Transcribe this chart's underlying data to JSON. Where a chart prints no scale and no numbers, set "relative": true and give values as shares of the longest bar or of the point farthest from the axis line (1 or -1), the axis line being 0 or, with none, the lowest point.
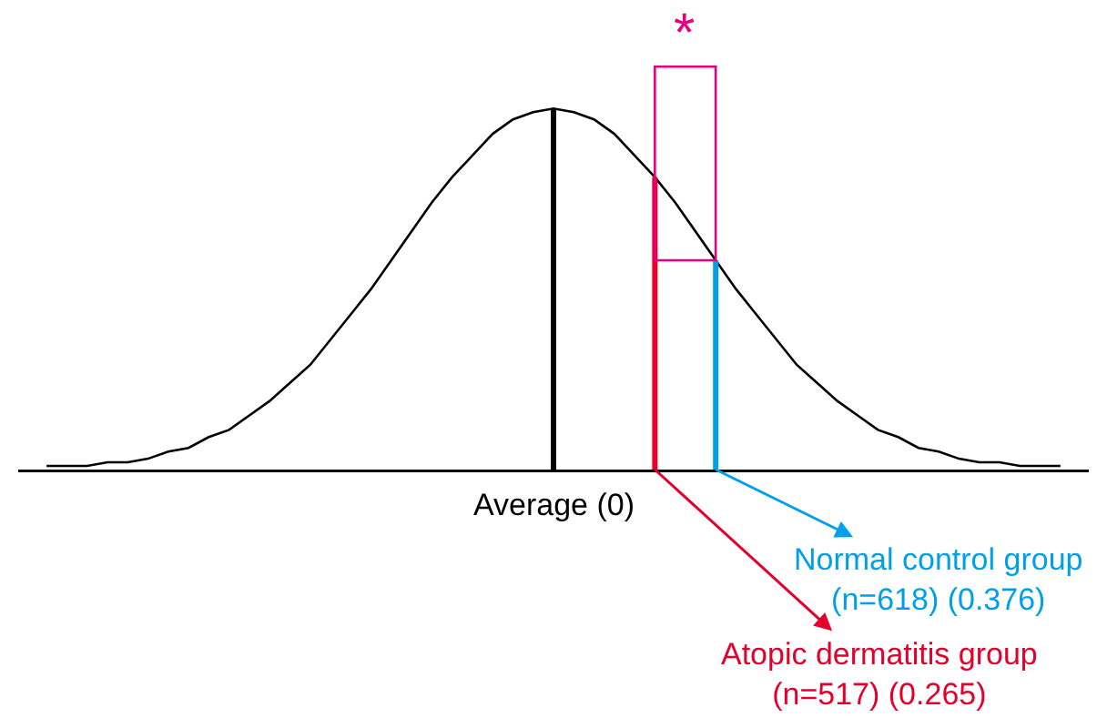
{
  "chart_data": {
    "type": "line",
    "relative": true,
    "grid": false,
    "marker": "none",
    "line_style": "solid",
    "categories": [
      null,
      null,
      null,
      null,
      null,
      null,
      null,
      null,
      null,
      null,
      null,
      null,
      null,
      null,
      null,
      null,
      null,
      null,
      null,
      null,
      null,
      null,
      null,
      null,
      null,
      null,
      null,
      null,
      null,
      null,
      null,
      null,
      null,
      null,
      null,
      null,
      null,
      null,
      null,
      null,
      null,
      null,
      null,
      null,
      null,
      null,
      null,
      null,
      null,
      null,
      null
    ],
    "series": [
      {
        "color": "#000000",
        "values": [
          0.01,
          0.01,
          0.01,
          0.02,
          0.02,
          0.03,
          0.05,
          0.06,
          0.09,
          0.11,
          0.15,
          0.19,
          0.24,
          0.29,
          0.36,
          0.43,
          0.5,
          0.58,
          0.66,
          0.74,
          0.81,
          0.87,
          0.93,
          0.97,
          0.99,
          1,
          0.99,
          0.97,
          0.93,
          0.87,
          0.81,
          0.74,
          0.66,
          0.58,
          0.5,
          0.43,
          0.36,
          0.29,
          0.24,
          0.19,
          0.15,
          0.11,
          0.09,
          0.06,
          0.05,
          0.03,
          0.02,
          0.02,
          0.01,
          0.01,
          0.01
        ]
      }
    ],
    "annotations": [
      "*",
      "Average (0)",
      "Normal control group\n(n=618) (0.376)",
      "Atopic dermatitis group\n(n=517) (0.265)"
    ]
  }
}
